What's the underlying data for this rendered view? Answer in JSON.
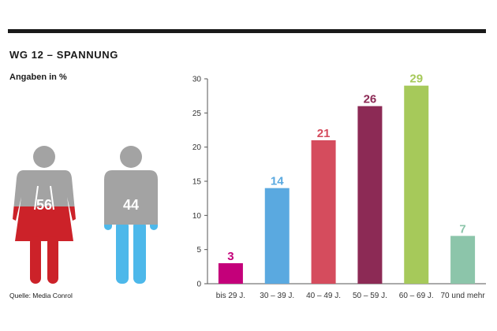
{
  "header": {
    "title": "WG 12 – SPANNUNG",
    "subtitle": "Angaben in %"
  },
  "source": "Quelle: Media Conrol",
  "gender": {
    "female": {
      "icon": "woman-icon",
      "value": "56",
      "fill_color": "#cc2229",
      "base_color": "#a3a3a3"
    },
    "male": {
      "icon": "man-icon",
      "value": "44",
      "fill_color": "#4db8ea",
      "base_color": "#a3a3a3"
    }
  },
  "chart_data": {
    "type": "bar",
    "categories": [
      "bis 29 J.",
      "30 – 39 J.",
      "40 – 49 J.",
      "50 – 59 J.",
      "60 – 69 J.",
      "70 und mehr"
    ],
    "values": [
      3,
      14,
      21,
      26,
      29,
      7
    ],
    "colors": [
      "#c4007a",
      "#5aa9e0",
      "#d54c5d",
      "#8c2a55",
      "#a6c95a",
      "#8cc5aa"
    ],
    "ylim": [
      0,
      30
    ],
    "yticks": [
      0,
      5,
      10,
      15,
      20,
      25,
      30
    ],
    "grid": false,
    "legend": "none"
  }
}
